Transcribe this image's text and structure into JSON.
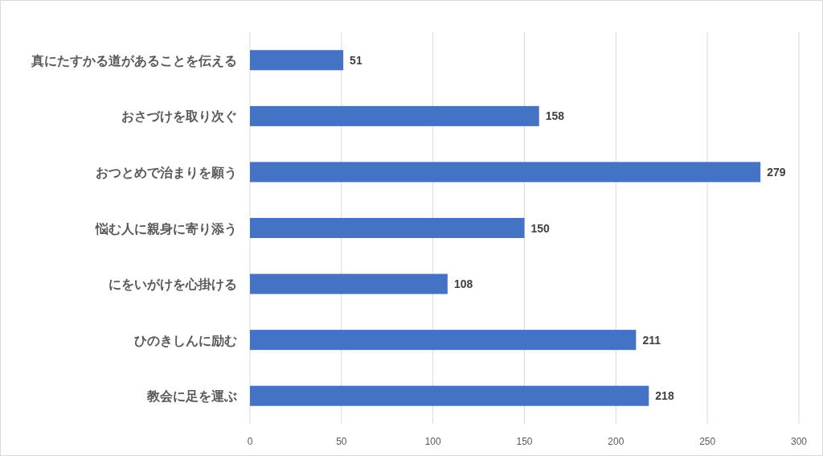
{
  "chart_data": {
    "type": "bar",
    "orientation": "horizontal",
    "categories": [
      "真にたすかる道があることを伝える",
      "おさづけを取り次ぐ",
      "おつとめで治まりを願う",
      "悩む人に親身に寄り添う",
      "にをいがけを心掛ける",
      "ひのきしんに励む",
      "教会に足を運ぶ"
    ],
    "values": [
      51,
      158,
      279,
      150,
      108,
      211,
      218
    ],
    "color": "#4472c4",
    "xlim": [
      0,
      300
    ],
    "xticks": [
      0,
      50,
      100,
      150,
      200,
      250,
      300
    ],
    "grid": "x",
    "data_labels": true
  }
}
